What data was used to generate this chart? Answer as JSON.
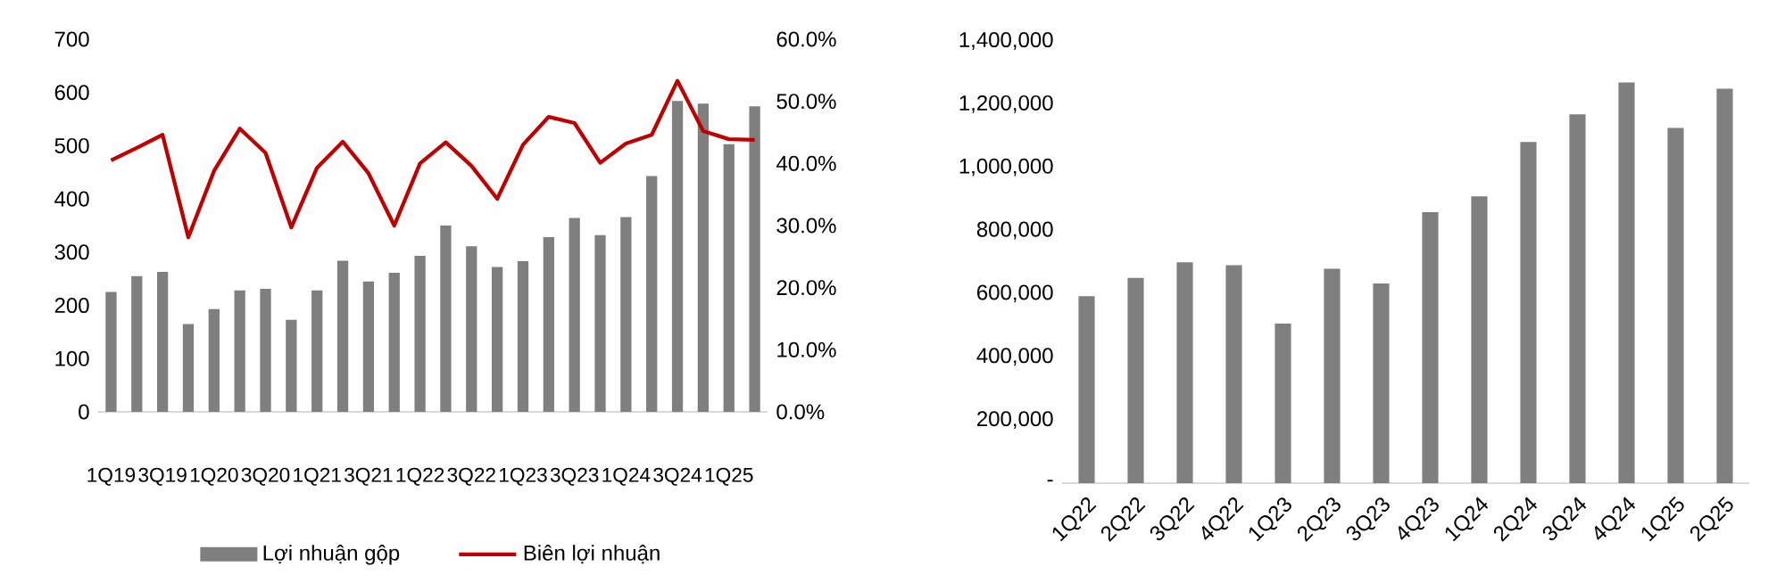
{
  "chart_data": [
    {
      "type": "bar",
      "categories": [
        "1Q19",
        null,
        "3Q19",
        null,
        "1Q20",
        null,
        "3Q20",
        null,
        "1Q21",
        null,
        "3Q21",
        null,
        "1Q22",
        null,
        "3Q22",
        null,
        "1Q23",
        null,
        "3Q23",
        null,
        "1Q24",
        null,
        "3Q24",
        null,
        "1Q25",
        null
      ],
      "series": [
        {
          "name": "Lợi nhuận gộp",
          "color": "#7f7f7f",
          "values": [
            225,
            255,
            263,
            165,
            193,
            228,
            231,
            173,
            228,
            284,
            245,
            261,
            293,
            350,
            311,
            272,
            283,
            328,
            364,
            332,
            366,
            443,
            584,
            579,
            503,
            574
          ]
        },
        {
          "name": "Biên lợi nhuận",
          "type": "line",
          "axis": "y2",
          "color": "#c00000",
          "values": [
            40.5,
            42.5,
            44.6,
            28.1,
            38.8,
            45.6,
            41.7,
            29.7,
            39.3,
            43.5,
            38.4,
            30.0,
            40.0,
            43.4,
            39.6,
            34.3,
            43.0,
            47.5,
            46.5,
            40.1,
            43.2,
            44.6,
            53.3,
            45.2,
            43.9,
            43.8
          ]
        }
      ],
      "ylim": [
        0,
        700
      ],
      "yticks": [
        0,
        100,
        200,
        300,
        400,
        500,
        600,
        700
      ],
      "y2lim": [
        0,
        60
      ],
      "y2ticks": [
        {
          "value": 0,
          "label": "0.0%"
        },
        {
          "value": 10,
          "label": "10.0%"
        },
        {
          "value": 20,
          "label": "20.0%"
        },
        {
          "value": 30,
          "label": "30.0%"
        },
        {
          "value": 40,
          "label": "40.0%"
        },
        {
          "value": 50,
          "label": "50.0%"
        },
        {
          "value": 60,
          "label": "60.0%"
        }
      ],
      "legend": "bottom"
    },
    {
      "type": "bar",
      "categories": [
        "1Q22",
        "2Q22",
        "3Q22",
        "4Q22",
        "1Q23",
        "2Q23",
        "3Q23",
        "4Q23",
        "1Q24",
        "2Q24",
        "3Q24",
        "4Q24",
        "1Q25",
        "2Q25"
      ],
      "values": [
        592000,
        650000,
        699000,
        690000,
        505000,
        679000,
        632000,
        858000,
        908000,
        1080000,
        1168000,
        1269000,
        1125000,
        1249000
      ],
      "color": "#7f7f7f",
      "ylim": [
        0,
        1400000
      ],
      "yticks": [
        {
          "value": 0,
          "label": "-"
        },
        {
          "value": 200000,
          "label": "200,000"
        },
        {
          "value": 400000,
          "label": "400,000"
        },
        {
          "value": 600000,
          "label": "600,000"
        },
        {
          "value": 800000,
          "label": "800,000"
        },
        {
          "value": 1000000,
          "label": "1,000,000"
        },
        {
          "value": 1200000,
          "label": "1,200,000"
        },
        {
          "value": 1400000,
          "label": "1,400,000"
        }
      ]
    }
  ]
}
